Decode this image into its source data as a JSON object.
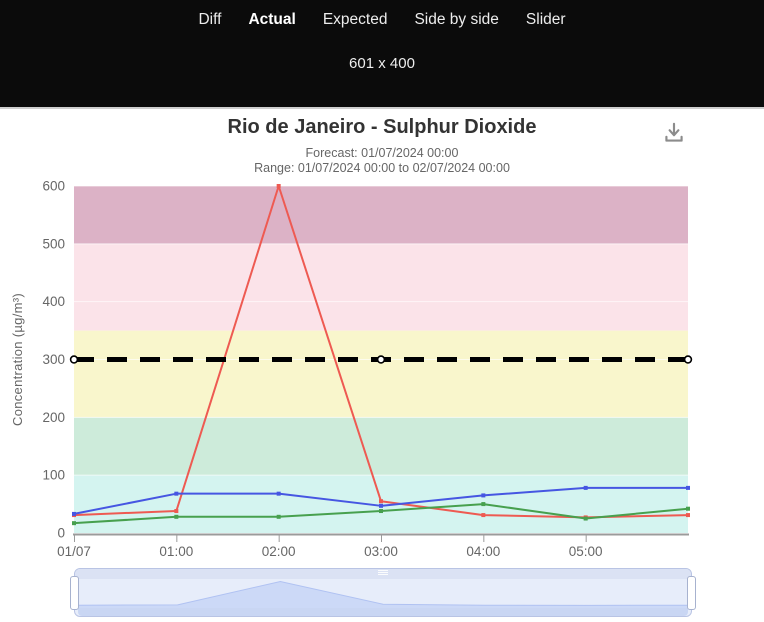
{
  "header": {
    "tabs": [
      {
        "label": "Diff",
        "active": false
      },
      {
        "label": "Actual",
        "active": true
      },
      {
        "label": "Expected",
        "active": false
      },
      {
        "label": "Side by side",
        "active": false
      },
      {
        "label": "Slider",
        "active": false
      }
    ],
    "size_readout": "601 x 400"
  },
  "chart": {
    "title": "Rio de Janeiro - Sulphur Dioxide",
    "subtitle_forecast": "Forecast: 01/07/2024 00:00",
    "subtitle_range": "Range: 01/07/2024 00:00 to 02/07/2024 00:00"
  },
  "chart_data": {
    "type": "line",
    "title": "Rio de Janeiro - Sulphur Dioxide",
    "subtitle": [
      "Forecast: 01/07/2024 00:00",
      "Range: 01/07/2024 00:00 to 02/07/2024 00:00"
    ],
    "xlabel": "",
    "ylabel": "Concentration (µg/m³)",
    "ylim": [
      0,
      600
    ],
    "y_ticks": [
      0,
      100,
      200,
      300,
      400,
      500,
      600
    ],
    "x_range_hours": [
      0,
      6
    ],
    "x_tick_hours": [
      0,
      1,
      2,
      3,
      4,
      5
    ],
    "x_tick_labels": [
      "01/07",
      "01:00",
      "02:00",
      "03:00",
      "04:00",
      "05:00"
    ],
    "grid": "horizontal-only",
    "legend_position": "none",
    "plot_bands": [
      {
        "from": 0,
        "to": 100,
        "color": "#d4f4f0"
      },
      {
        "from": 100,
        "to": 200,
        "color": "#cdebda"
      },
      {
        "from": 200,
        "to": 350,
        "color": "#f9f6cc"
      },
      {
        "from": 350,
        "to": 500,
        "color": "#fbe3e9"
      },
      {
        "from": 500,
        "to": 600,
        "color": "#dcb2c6"
      }
    ],
    "threshold_line": {
      "value": 300,
      "color": "#000000",
      "style": "dashed",
      "line_width": 5,
      "marker_hours": [
        0,
        3,
        6
      ],
      "marker_fill": "#ffffff"
    },
    "series": [
      {
        "name": "red-series",
        "color": "#ee5a52",
        "x_hours": [
          0,
          1,
          2,
          3,
          4,
          5,
          6
        ],
        "values": [
          31,
          38,
          600,
          55,
          31,
          27,
          31
        ]
      },
      {
        "name": "blue-series",
        "color": "#4656e2",
        "x_hours": [
          0,
          1,
          2,
          3,
          4,
          5,
          6
        ],
        "values": [
          33,
          68,
          68,
          47,
          65,
          78,
          78
        ]
      },
      {
        "name": "green-series",
        "color": "#47a04e",
        "x_hours": [
          0,
          1,
          2,
          3,
          4,
          5,
          6
        ],
        "values": [
          17,
          28,
          28,
          38,
          50,
          25,
          42
        ]
      }
    ],
    "axis_text_color": "#666666",
    "axis_line_color": "#9b9b9b"
  },
  "navigator": {
    "mini_series": "red-series",
    "track_color": "#e7edfa",
    "bar_color": "#dbe2f4",
    "grip_color": "#ffffff",
    "area_fill": "#ccd9f7",
    "area_line": "#b0c2f2",
    "bottom_bar_color": "#c9d6f3",
    "handle_color": "#ffffff"
  }
}
